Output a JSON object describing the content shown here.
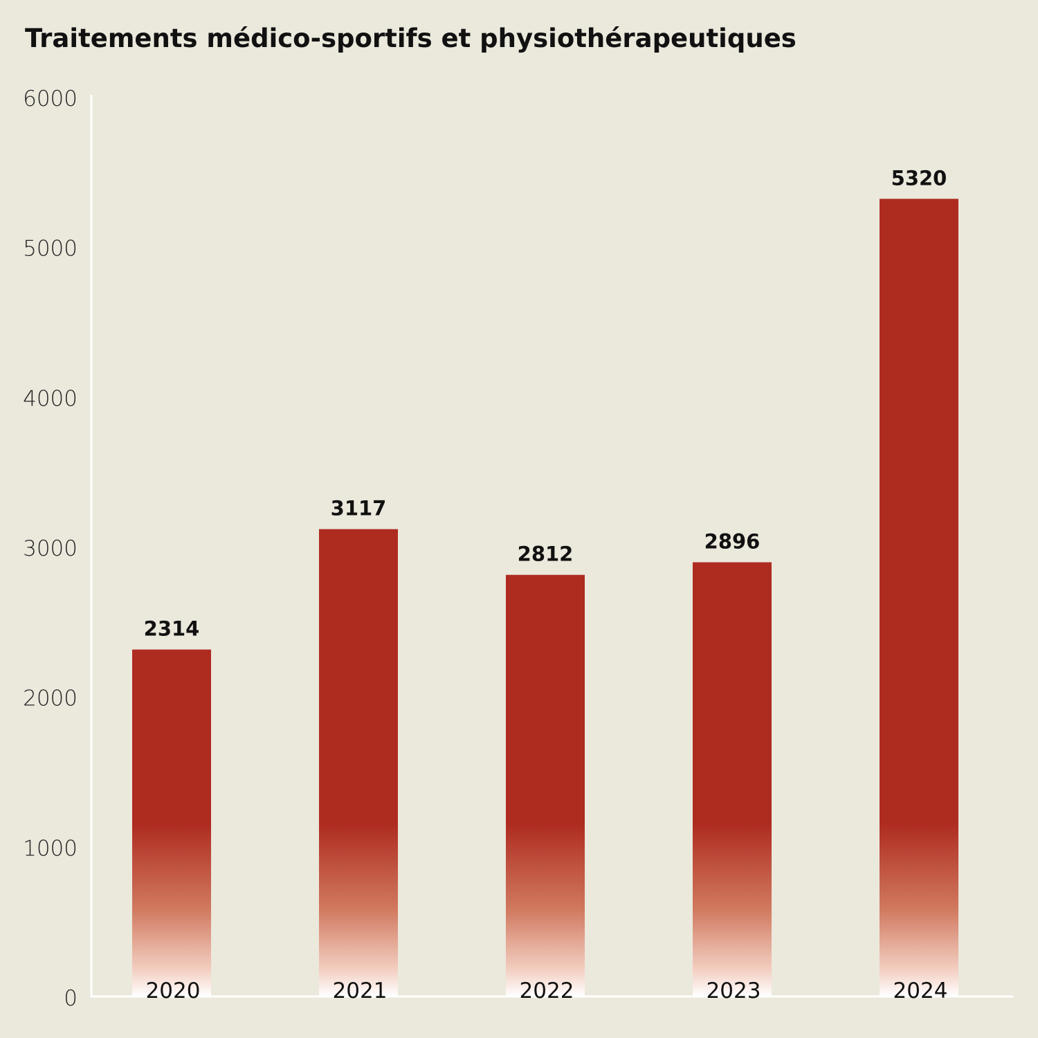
{
  "chart_data": {
    "type": "bar",
    "title": "Traitements médico-sportifs et physiothérapeutiques",
    "categories": [
      "2020",
      "2021",
      "2022",
      "2023",
      "2024"
    ],
    "values": [
      2314,
      3117,
      2812,
      2896,
      5320
    ],
    "xlabel": "",
    "ylabel": "",
    "ylim": [
      0,
      6000
    ],
    "yticks": [
      0,
      1000,
      2000,
      3000,
      4000,
      5000,
      6000
    ],
    "grid": false,
    "data_labels": true,
    "colors": {
      "bar": "#AE2B20",
      "bar_fade": "#FFFFFF",
      "background": "#EBE8DC",
      "axis": "#FFFFFF"
    }
  }
}
